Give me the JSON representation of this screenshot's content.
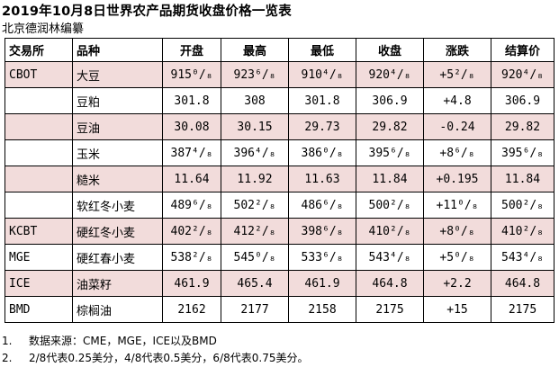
{
  "title": "2019年10月8日世界农产品期货收盘价格一览表",
  "subtitle": "北京德润林编纂",
  "headers": [
    "交易所",
    "品种",
    "开盘",
    "最高",
    "最低",
    "收盘",
    "涨跌",
    "结算价"
  ],
  "rows": [
    {
      "exchange": "CBOT",
      "product": "大豆",
      "open": "915⁰/₈",
      "high": "923⁶/₈",
      "low": "910⁴/₈",
      "close": "920⁴/₈",
      "change": "+5²/₈",
      "settle": "920⁴/₈"
    },
    {
      "exchange": "",
      "product": "豆粕",
      "open": "301.8",
      "high": "308",
      "low": "301.8",
      "close": "306.9",
      "change": "+4.8",
      "settle": "306.9"
    },
    {
      "exchange": "",
      "product": "豆油",
      "open": "30.08",
      "high": "30.15",
      "low": "29.73",
      "close": "29.82",
      "change": "-0.24",
      "settle": "29.82"
    },
    {
      "exchange": "",
      "product": "玉米",
      "open": "387⁴/₈",
      "high": "396⁴/₈",
      "low": "386⁰/₈",
      "close": "395⁶/₈",
      "change": "+8⁶/₈",
      "settle": "395⁶/₈"
    },
    {
      "exchange": "",
      "product": "糙米",
      "open": "11.64",
      "high": "11.92",
      "low": "11.63",
      "close": "11.84",
      "change": "+0.195",
      "settle": "11.84"
    },
    {
      "exchange": "",
      "product": "软红冬小麦",
      "open": "489⁶/₈",
      "high": "502²/₈",
      "low": "486⁶/₈",
      "close": "500²/₈",
      "change": "+11⁰/₈",
      "settle": "500²/₈"
    },
    {
      "exchange": "KCBT",
      "product": "硬红冬小麦",
      "open": "402²/₈",
      "high": "412²/₈",
      "low": "398⁶/₈",
      "close": "410²/₈",
      "change": "+8⁰/₈",
      "settle": "410²/₈"
    },
    {
      "exchange": "MGE",
      "product": "硬红春小麦",
      "open": "538²/₈",
      "high": "545⁰/₈",
      "low": "533⁶/₈",
      "close": "543⁴/₈",
      "change": "+5⁰/₈",
      "settle": "543⁴/₈"
    },
    {
      "exchange": "ICE",
      "product": "油菜籽",
      "open": "461.9",
      "high": "465.4",
      "low": "461.9",
      "close": "464.8",
      "change": "+2.2",
      "settle": "464.8"
    },
    {
      "exchange": "BMD",
      "product": "棕榈油",
      "open": "2162",
      "high": "2177",
      "low": "2158",
      "close": "2175",
      "change": "+15",
      "settle": "2175"
    }
  ],
  "notes": [
    {
      "num": "1.",
      "text": "数据来源：CME，MGE，ICE以及BMD"
    },
    {
      "num": "2.",
      "text": "2/8代表0.25美分，4/8代表0.5美分，6/8代表0.75美分。"
    }
  ],
  "colors": {
    "pink_row": "#f2dcdb",
    "white_row": "#ffffff",
    "border": "#000000"
  }
}
